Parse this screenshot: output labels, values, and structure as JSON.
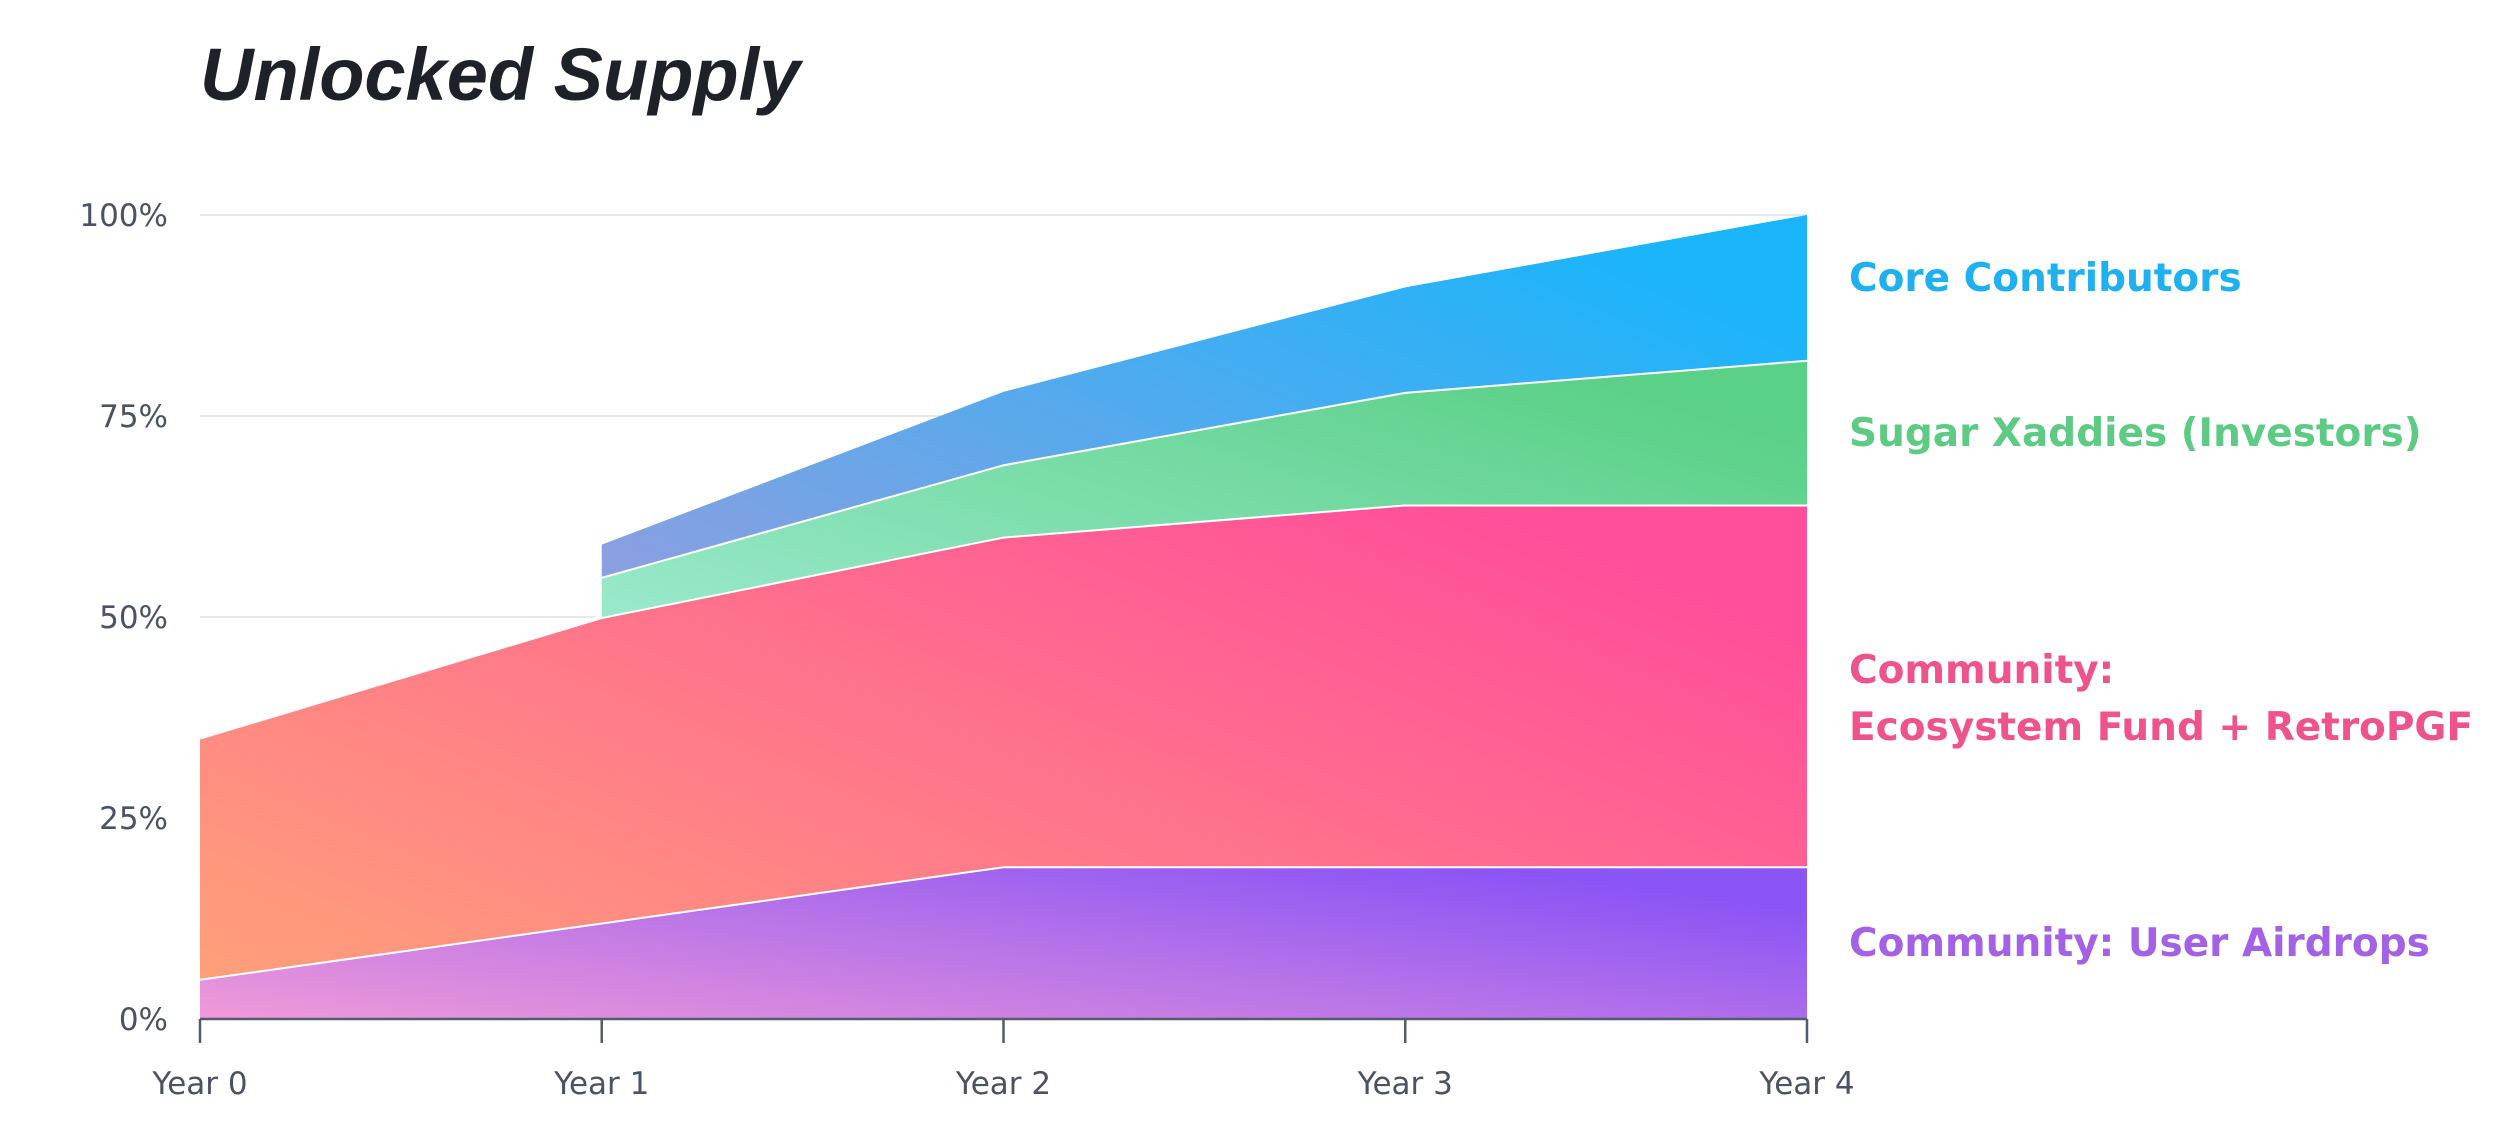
{
  "chart_data": {
    "type": "area",
    "stacked": true,
    "title": "Unlocked Supply",
    "xlabel": "",
    "ylabel": "",
    "categories": [
      "Year 0",
      "Year 1",
      "Year 2",
      "Year 3",
      "Year 4"
    ],
    "ylim": [
      0,
      100
    ],
    "yticks": [
      0,
      25,
      50,
      75,
      100
    ],
    "ytick_labels": [
      "0%",
      "25%",
      "50%",
      "75%",
      "100%"
    ],
    "grid": true,
    "legend_placement": "right",
    "series": [
      {
        "name": "Community: User Airdrops",
        "values": [
          5,
          12,
          19,
          19,
          19
        ],
        "colors": [
          "#f09ad8",
          "#8b55f5"
        ],
        "label_color": "#a362e6"
      },
      {
        "name": "Community: Ecosystem Fund + RetroPGF",
        "label_lines": [
          "Community:",
          "Ecosystem Fund + RetroPGF"
        ],
        "values": [
          30,
          38,
          41,
          45,
          45
        ],
        "colors": [
          "#ffa07a",
          "#ff4f9a"
        ],
        "label_color": "#ef538b"
      },
      {
        "name": "Sugar Xaddies (Investors)",
        "values": [
          null,
          5,
          9,
          14,
          18
        ],
        "colors": [
          "#9ae9cc",
          "#5bd087"
        ],
        "label_color": "#5ecb85"
      },
      {
        "name": "Core Contributors",
        "values": [
          null,
          4,
          9,
          13,
          18
        ],
        "colors": [
          "#8c9fe0",
          "#1ab5fb"
        ],
        "label_color": "#1fb0ef"
      }
    ]
  }
}
